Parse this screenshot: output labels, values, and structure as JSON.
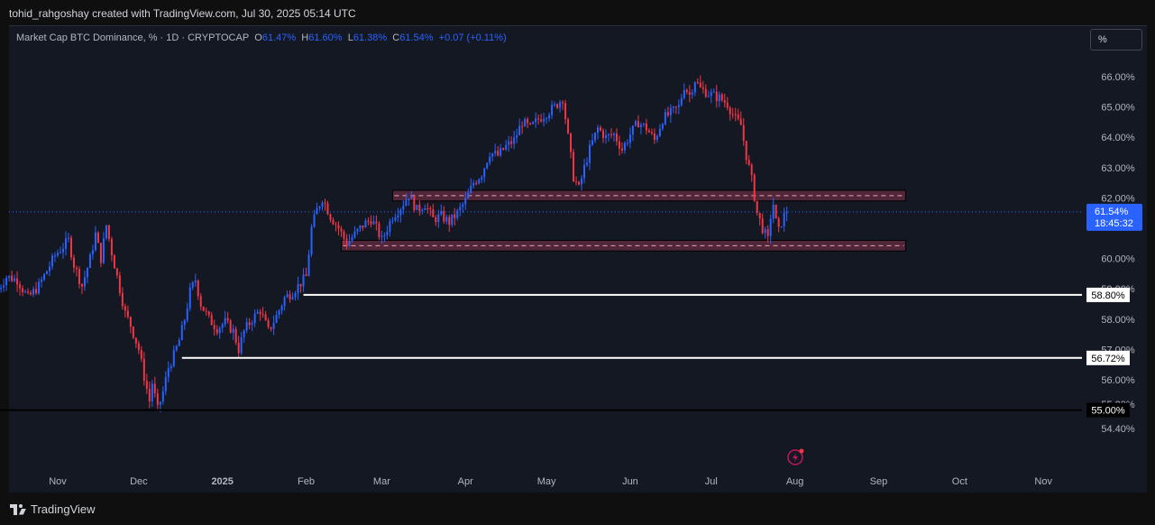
{
  "header": {
    "attribution": "tohid_rahgoshay created with TradingView.com, Jul 30, 2025 05:14 UTC"
  },
  "legend": {
    "symbol": "Market Cap BTC Dominance, % · 1D · CRYPTOCAP",
    "open_label": "O",
    "open": "61.47%",
    "high_label": "H",
    "high": "61.60%",
    "low_label": "L",
    "low": "61.38%",
    "close_label": "C",
    "close": "61.54%",
    "change": "+0.07 (+0.11%)"
  },
  "unit_button": "%",
  "price_tag": {
    "value": "61.54%",
    "countdown": "18:45:32"
  },
  "level_tags": [
    "58.80%",
    "56.72%",
    "55.00%"
  ],
  "footer": {
    "brand": "TradingView"
  },
  "colors": {
    "up": "#2962ff",
    "down": "#f23645",
    "background": "#141823",
    "zone_fill": "#5b2a3c",
    "zone_border": "#f4a0b4",
    "level_line": "#ffffff",
    "low_line": "#000000"
  },
  "icons": [
    "flash-alert-icon",
    "tradingview-logo-icon"
  ],
  "chart_data": {
    "type": "candlestick",
    "title": "Market Cap BTC Dominance, % · 1D · CRYPTOCAP",
    "y_ticks": [
      "66.00%",
      "65.00%",
      "64.00%",
      "63.00%",
      "62.00%",
      "60.00%",
      "59.00%",
      "58.00%",
      "57.00%",
      "56.00%",
      "55.20%",
      "54.40%"
    ],
    "x_ticks": [
      "Nov",
      "Dec",
      "2025",
      "Feb",
      "Mar",
      "Apr",
      "May",
      "Jun",
      "Jul",
      "Aug",
      "Sep",
      "Oct",
      "Nov"
    ],
    "x_tick_dates": [
      "2024-11-01",
      "2024-12-01",
      "2025-01-01",
      "2025-02-01",
      "2025-03-01",
      "2025-04-01",
      "2025-05-01",
      "2025-06-01",
      "2025-07-01",
      "2025-08-01",
      "2025-09-01",
      "2025-10-01",
      "2025-11-01"
    ],
    "ylim": [
      54.2,
      66.7
    ],
    "last_price": 61.54,
    "horizontal_levels": [
      {
        "value": 58.8,
        "start_date": "2025-01-31",
        "color": "#ffffff"
      },
      {
        "value": 56.72,
        "start_date": "2024-12-17",
        "color": "#ffffff"
      },
      {
        "value": 55.0,
        "start_date": "2024-10-10",
        "color": "#000000"
      }
    ],
    "zones": [
      {
        "low": 61.9,
        "high": 62.25,
        "start_date": "2025-03-05",
        "end_date": "2025-09-11"
      },
      {
        "low": 60.25,
        "high": 60.6,
        "start_date": "2025-02-14",
        "end_date": "2025-09-11"
      }
    ],
    "series": [
      {
        "type": "close_path",
        "points": [
          [
            "2024-10-10",
            59.0
          ],
          [
            "2024-10-13",
            59.4
          ],
          [
            "2024-10-17",
            59.3
          ],
          [
            "2024-10-21",
            58.7
          ],
          [
            "2024-10-25",
            59.1
          ],
          [
            "2024-10-28",
            59.6
          ],
          [
            "2024-10-31",
            60.1
          ],
          [
            "2024-11-03",
            60.4
          ],
          [
            "2024-11-05",
            60.6
          ],
          [
            "2024-11-07",
            59.8
          ],
          [
            "2024-11-10",
            59.1
          ],
          [
            "2024-11-13",
            60.0
          ],
          [
            "2024-11-15",
            60.8
          ],
          [
            "2024-11-17",
            60.0
          ],
          [
            "2024-11-19",
            61.1
          ],
          [
            "2024-11-21",
            60.2
          ],
          [
            "2024-11-24",
            59.0
          ],
          [
            "2024-11-26",
            58.2
          ],
          [
            "2024-11-28",
            57.8
          ],
          [
            "2024-12-01",
            57.0
          ],
          [
            "2024-12-03",
            56.1
          ],
          [
            "2024-12-05",
            55.3
          ],
          [
            "2024-12-06",
            55.9
          ],
          [
            "2024-12-08",
            55.0
          ],
          [
            "2024-12-10",
            55.6
          ],
          [
            "2024-12-12",
            56.4
          ],
          [
            "2024-12-14",
            56.8
          ],
          [
            "2024-12-16",
            57.3
          ],
          [
            "2024-12-18",
            58.0
          ],
          [
            "2024-12-20",
            58.9
          ],
          [
            "2024-12-22",
            59.3
          ],
          [
            "2024-12-24",
            58.5
          ],
          [
            "2024-12-27",
            58.0
          ],
          [
            "2024-12-30",
            57.7
          ],
          [
            "2025-01-02",
            57.9
          ],
          [
            "2025-01-05",
            57.6
          ],
          [
            "2025-01-07",
            57.0
          ],
          [
            "2025-01-09",
            57.6
          ],
          [
            "2025-01-12",
            58.0
          ],
          [
            "2025-01-15",
            58.3
          ],
          [
            "2025-01-18",
            57.6
          ],
          [
            "2025-01-21",
            58.1
          ],
          [
            "2025-01-24",
            58.7
          ],
          [
            "2025-01-27",
            58.9
          ],
          [
            "2025-01-30",
            59.2
          ],
          [
            "2025-02-01",
            59.4
          ],
          [
            "2025-02-03",
            61.0
          ],
          [
            "2025-02-05",
            61.6
          ],
          [
            "2025-02-07",
            62.0
          ],
          [
            "2025-02-10",
            61.4
          ],
          [
            "2025-02-13",
            61.0
          ],
          [
            "2025-02-16",
            60.5
          ],
          [
            "2025-02-19",
            60.8
          ],
          [
            "2025-02-22",
            61.1
          ],
          [
            "2025-02-25",
            61.3
          ],
          [
            "2025-02-27",
            61.0
          ],
          [
            "2025-03-01",
            60.6
          ],
          [
            "2025-03-03",
            61.0
          ],
          [
            "2025-03-05",
            61.4
          ],
          [
            "2025-03-08",
            61.7
          ],
          [
            "2025-03-11",
            62.1
          ],
          [
            "2025-03-14",
            61.6
          ],
          [
            "2025-03-17",
            61.8
          ],
          [
            "2025-03-20",
            61.3
          ],
          [
            "2025-03-23",
            61.4
          ],
          [
            "2025-03-26",
            61.2
          ],
          [
            "2025-03-29",
            61.5
          ],
          [
            "2025-04-01",
            61.9
          ],
          [
            "2025-04-04",
            62.5
          ],
          [
            "2025-04-07",
            62.8
          ],
          [
            "2025-04-10",
            63.5
          ],
          [
            "2025-04-13",
            63.4
          ],
          [
            "2025-04-16",
            63.7
          ],
          [
            "2025-04-19",
            63.9
          ],
          [
            "2025-04-22",
            64.5
          ],
          [
            "2025-04-25",
            64.3
          ],
          [
            "2025-04-28",
            64.6
          ],
          [
            "2025-05-01",
            64.8
          ],
          [
            "2025-05-04",
            65.0
          ],
          [
            "2025-05-07",
            65.3
          ],
          [
            "2025-05-09",
            64.0
          ],
          [
            "2025-05-11",
            62.7
          ],
          [
            "2025-05-13",
            62.3
          ],
          [
            "2025-05-15",
            63.0
          ],
          [
            "2025-05-17",
            63.6
          ],
          [
            "2025-05-20",
            64.3
          ],
          [
            "2025-05-23",
            64.0
          ],
          [
            "2025-05-26",
            64.1
          ],
          [
            "2025-05-29",
            63.6
          ],
          [
            "2025-06-01",
            64.1
          ],
          [
            "2025-06-04",
            64.5
          ],
          [
            "2025-06-07",
            64.3
          ],
          [
            "2025-06-10",
            63.9
          ],
          [
            "2025-06-13",
            64.6
          ],
          [
            "2025-06-16",
            64.8
          ],
          [
            "2025-06-19",
            65.0
          ],
          [
            "2025-06-21",
            65.7
          ],
          [
            "2025-06-23",
            65.4
          ],
          [
            "2025-06-25",
            65.9
          ],
          [
            "2025-06-27",
            65.6
          ],
          [
            "2025-06-29",
            65.5
          ],
          [
            "2025-07-01",
            65.4
          ],
          [
            "2025-07-04",
            65.3
          ],
          [
            "2025-07-07",
            65.1
          ],
          [
            "2025-07-10",
            64.6
          ],
          [
            "2025-07-12",
            64.4
          ],
          [
            "2025-07-14",
            63.4
          ],
          [
            "2025-07-16",
            62.6
          ],
          [
            "2025-07-18",
            61.5
          ],
          [
            "2025-07-20",
            61.0
          ],
          [
            "2025-07-22",
            60.6
          ],
          [
            "2025-07-23",
            61.4
          ],
          [
            "2025-07-24",
            61.8
          ],
          [
            "2025-07-25",
            61.2
          ],
          [
            "2025-07-26",
            60.9
          ],
          [
            "2025-07-27",
            61.2
          ],
          [
            "2025-07-28",
            61.4
          ],
          [
            "2025-07-30",
            61.54
          ]
        ]
      }
    ]
  }
}
